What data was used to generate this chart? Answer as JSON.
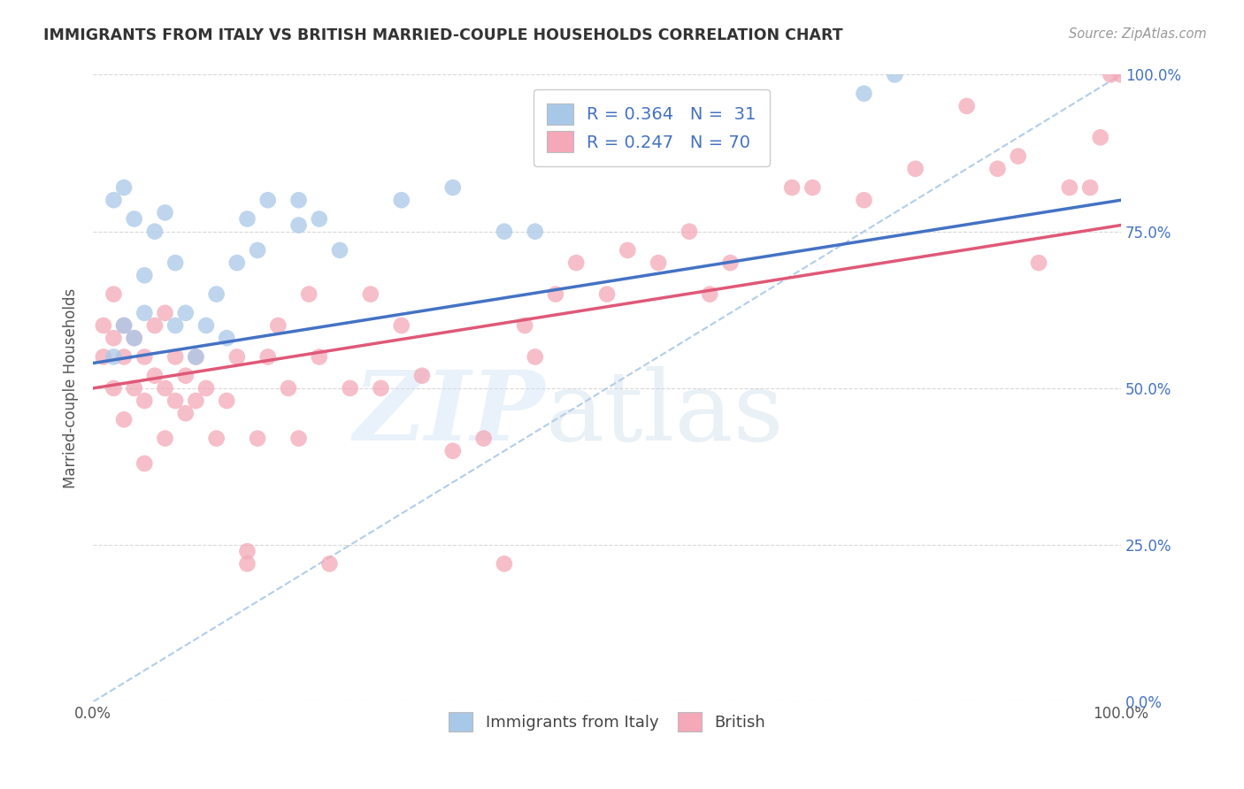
{
  "title": "IMMIGRANTS FROM ITALY VS BRITISH MARRIED-COUPLE HOUSEHOLDS CORRELATION CHART",
  "source": "Source: ZipAtlas.com",
  "ylabel": "Married-couple Households",
  "ytick_labels": [
    "0.0%",
    "25.0%",
    "50.0%",
    "75.0%",
    "100.0%"
  ],
  "ytick_values": [
    0,
    25,
    50,
    75,
    100
  ],
  "xlim": [
    0,
    100
  ],
  "ylim": [
    0,
    100
  ],
  "legend_label_italy": "Immigrants from Italy",
  "legend_label_british": "British",
  "italy_color": "#a8c8e8",
  "british_color": "#f4a8b8",
  "italy_line_color": "#4472c4",
  "british_line_color": "#e05878",
  "diagonal_color": "#a8c8e8",
  "background_color": "#ffffff",
  "grid_color": "#d8d8d8",
  "italy_line_x0": 0,
  "italy_line_y0": 54,
  "italy_line_x1": 100,
  "italy_line_y1": 80,
  "british_line_x0": 0,
  "british_line_y0": 50,
  "british_line_x1": 100,
  "british_line_y1": 76,
  "italy_points_x": [
    2,
    3,
    4,
    5,
    6,
    7,
    8,
    8,
    9,
    10,
    11,
    12,
    13,
    14,
    15,
    16,
    17,
    20,
    20,
    22,
    24,
    30,
    35,
    40,
    43,
    75,
    78,
    2,
    3,
    4,
    5
  ],
  "italy_points_y": [
    80,
    82,
    77,
    68,
    75,
    78,
    70,
    60,
    62,
    55,
    60,
    65,
    58,
    70,
    77,
    72,
    80,
    76,
    80,
    77,
    72,
    80,
    82,
    75,
    75,
    97,
    100,
    55,
    60,
    58,
    62
  ],
  "british_points_x": [
    1,
    1,
    2,
    2,
    2,
    3,
    3,
    3,
    4,
    4,
    5,
    5,
    5,
    6,
    6,
    7,
    7,
    8,
    8,
    9,
    10,
    10,
    11,
    12,
    13,
    14,
    15,
    15,
    16,
    17,
    18,
    19,
    20,
    21,
    22,
    23,
    25,
    27,
    28,
    30,
    32,
    35,
    38,
    40,
    42,
    43,
    45,
    47,
    50,
    52,
    55,
    58,
    60,
    62,
    65,
    68,
    70,
    75,
    80,
    85,
    88,
    90,
    92,
    95,
    97,
    98,
    99,
    100,
    7,
    9
  ],
  "british_points_y": [
    55,
    60,
    58,
    65,
    50,
    60,
    55,
    45,
    58,
    50,
    55,
    48,
    38,
    60,
    52,
    62,
    50,
    55,
    48,
    52,
    55,
    48,
    50,
    42,
    48,
    55,
    22,
    24,
    42,
    55,
    60,
    50,
    42,
    65,
    55,
    22,
    50,
    65,
    50,
    60,
    52,
    40,
    42,
    22,
    60,
    55,
    65,
    70,
    65,
    72,
    70,
    75,
    65,
    70,
    95,
    82,
    82,
    80,
    85,
    95,
    85,
    87,
    70,
    82,
    82,
    90,
    100,
    100,
    42,
    46
  ]
}
